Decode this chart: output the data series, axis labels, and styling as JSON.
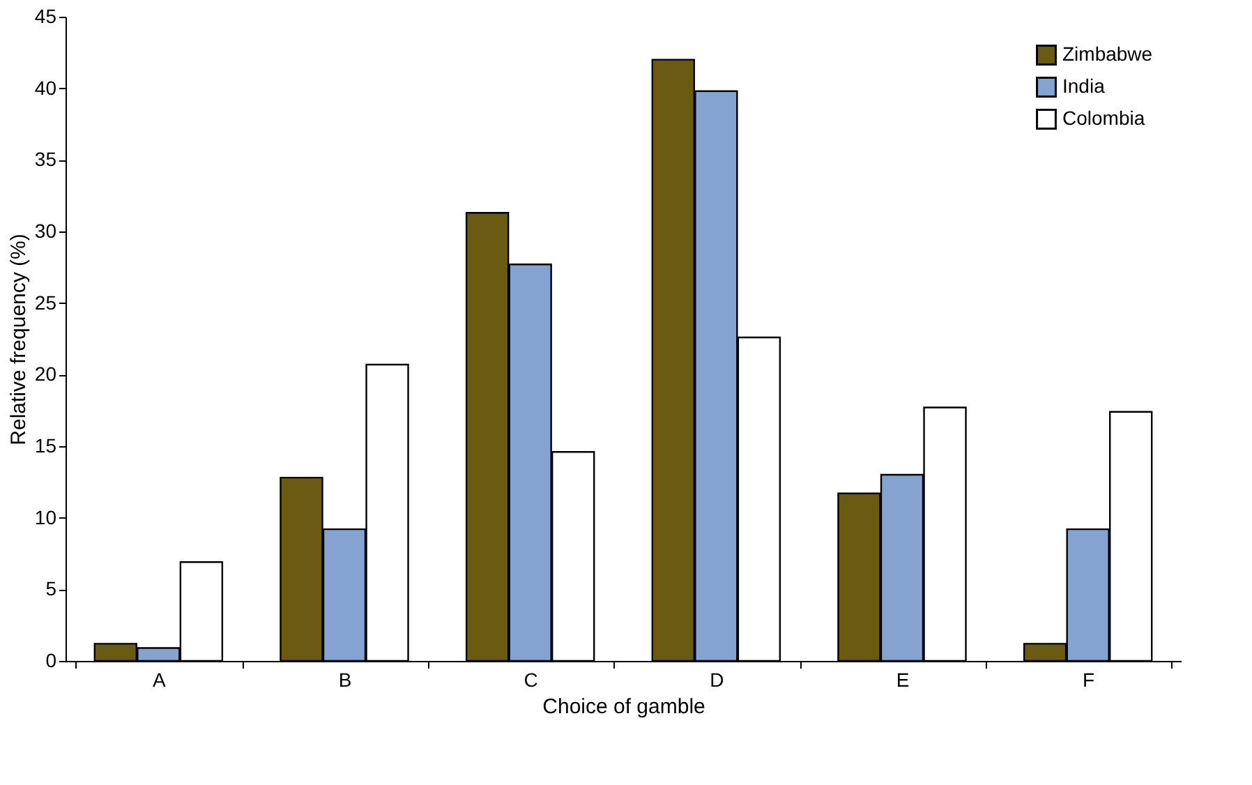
{
  "chart_data": {
    "type": "bar",
    "xlabel": "Choice of gamble",
    "ylabel": "Relative frequency (%)",
    "categories": [
      "A",
      "B",
      "C",
      "D",
      "E",
      "F"
    ],
    "series": [
      {
        "name": "Zimbabwe",
        "color": "#6b5a12",
        "values": [
          1.2,
          12.8,
          31.3,
          42,
          11.7,
          1.2
        ]
      },
      {
        "name": "India",
        "color": "#85a3d0",
        "values": [
          0.9,
          9.2,
          27.7,
          39.8,
          13,
          9.2
        ]
      },
      {
        "name": "Colombia",
        "color": "#ffffff",
        "values": [
          6.9,
          20.7,
          14.6,
          22.6,
          17.7,
          17.4
        ]
      }
    ],
    "ylim": [
      0,
      45
    ],
    "yticks": [
      0,
      5,
      10,
      15,
      20,
      25,
      30,
      35,
      40,
      45
    ],
    "grid": false,
    "legend": "top right"
  }
}
